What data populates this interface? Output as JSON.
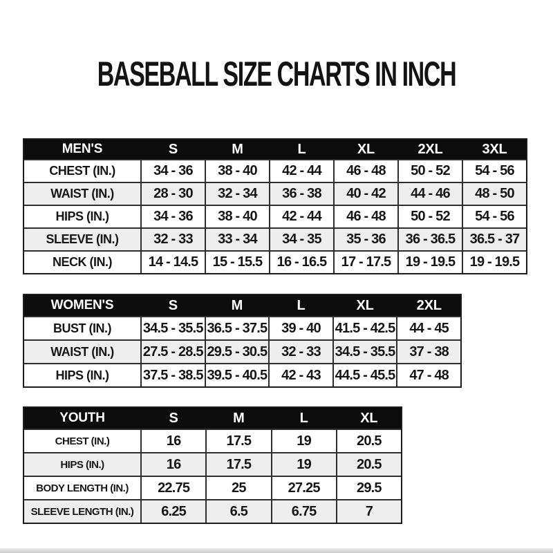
{
  "title": "BASEBALL SIZE CHARTS IN INCH",
  "chart_data": [
    {
      "type": "table",
      "header_label": "MEN'S",
      "columns": [
        "S",
        "M",
        "L",
        "XL",
        "2XL",
        "3XL"
      ],
      "rows": [
        {
          "label": "CHEST (IN.)",
          "values": [
            "34 - 36",
            "38 - 40",
            "42 - 44",
            "46 - 48",
            "50 - 52",
            "54 - 56"
          ]
        },
        {
          "label": "WAIST (IN.)",
          "values": [
            "28 - 30",
            "32 - 34",
            "36 - 38",
            "40 - 42",
            "44 - 46",
            "48 - 50"
          ]
        },
        {
          "label": "HIPS (IN.)",
          "values": [
            "34 - 36",
            "38 - 40",
            "42 - 44",
            "46 - 48",
            "50 - 52",
            "54 - 56"
          ]
        },
        {
          "label": "SLEEVE (IN.)",
          "values": [
            "32 - 33",
            "33 - 34",
            "34 - 35",
            "35 - 36",
            "36 - 36.5",
            "36.5 - 37"
          ]
        },
        {
          "label": "NECK (IN.)",
          "values": [
            "14 - 14.5",
            "15 - 15.5",
            "16 - 16.5",
            "17 - 17.5",
            "19 - 19.5",
            "19 - 19.5"
          ]
        }
      ]
    },
    {
      "type": "table",
      "header_label": "WOMEN'S",
      "columns": [
        "S",
        "M",
        "L",
        "XL",
        "2XL"
      ],
      "rows": [
        {
          "label": "BUST (IN.)",
          "values": [
            "34.5 - 35.5",
            "36.5 - 37.5",
            "39 - 40",
            "41.5 - 42.5",
            "44 - 45"
          ]
        },
        {
          "label": "WAIST (IN.)",
          "values": [
            "27.5 - 28.5",
            "29.5 - 30.5",
            "32 - 33",
            "34.5 - 35.5",
            "37 - 38"
          ]
        },
        {
          "label": "HIPS (IN.)",
          "values": [
            "37.5 - 38.5",
            "39.5 - 40.5",
            "42 - 43",
            "44.5 - 45.5",
            "47 - 48"
          ]
        }
      ]
    },
    {
      "type": "table",
      "header_label": "YOUTH",
      "columns": [
        "S",
        "M",
        "L",
        "XL"
      ],
      "rows": [
        {
          "label": "CHEST (IN.)",
          "values": [
            "16",
            "17.5",
            "19",
            "20.5"
          ]
        },
        {
          "label": "HIPS (IN.)",
          "values": [
            "16",
            "17.5",
            "19",
            "20.5"
          ]
        },
        {
          "label": "BODY LENGTH (IN.)",
          "values": [
            "22.75",
            "25",
            "27.25",
            "29.5"
          ]
        },
        {
          "label": "SLEEVE LENGTH (IN.)",
          "values": [
            "6.25",
            "6.5",
            "6.75",
            "7"
          ]
        }
      ]
    }
  ],
  "colors": {
    "page_bg": "#ffffff",
    "header_bg": "#0c0c0c",
    "header_text": "#ffffff",
    "row_alt_bg": "#eeeeee",
    "border": "#2e2e2e",
    "text": "#161616",
    "bottom_band": "#cccccc"
  }
}
